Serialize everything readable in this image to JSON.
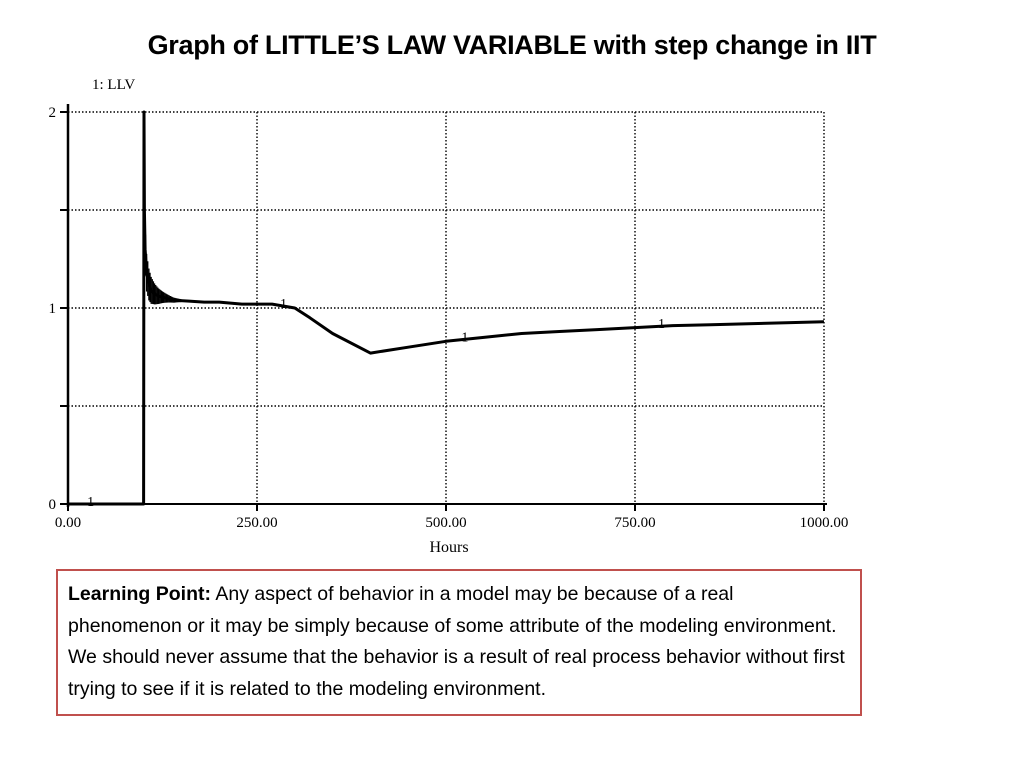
{
  "slide": {
    "title": "Graph of LITTLE’S LAW VARIABLE with step change in IIT"
  },
  "chart_data": {
    "type": "line",
    "series_label": "1: LLV",
    "series": [
      {
        "name": "LLV",
        "marker_label": "1",
        "color": "#000000",
        "x": [
          0,
          98,
          100,
          100.5,
          101,
          102,
          104,
          107,
          110,
          115,
          120,
          130,
          140,
          160,
          180,
          200,
          230,
          270,
          300,
          320,
          350,
          400,
          450,
          500,
          550,
          600,
          650,
          700,
          750,
          800,
          850,
          900,
          950,
          1000
        ],
        "y": [
          0,
          0,
          0,
          2.0,
          1.5,
          1.3,
          1.18,
          1.12,
          1.09,
          1.07,
          1.06,
          1.05,
          1.04,
          1.035,
          1.03,
          1.03,
          1.02,
          1.02,
          1.0,
          0.95,
          0.87,
          0.77,
          0.8,
          0.83,
          0.85,
          0.87,
          0.88,
          0.89,
          0.9,
          0.91,
          0.915,
          0.92,
          0.925,
          0.93
        ]
      }
    ],
    "oscillation_band": {
      "x": [
        100,
        150
      ],
      "amplitude": 0.12
    },
    "marker_positions": [
      30,
      285,
      525,
      785
    ],
    "vertical_line_x": 100,
    "xlabel": "Hours",
    "ylabel": "",
    "xlim": [
      0,
      1000
    ],
    "ylim": [
      0,
      2
    ],
    "x_ticks": [
      "0.00",
      "250.00",
      "500.00",
      "750.00",
      "1000.00"
    ],
    "y_ticks": [
      "0",
      "1",
      "2"
    ],
    "grid": true
  },
  "learning_point": {
    "label": "Learning Point:",
    "text": "Any aspect of behavior in a model may be because of a real phenomenon or it may be simply because of some attribute of the modeling environment. We should never assume that the behavior is a result of real process behavior without first trying to see if it is related to the modeling environment."
  }
}
